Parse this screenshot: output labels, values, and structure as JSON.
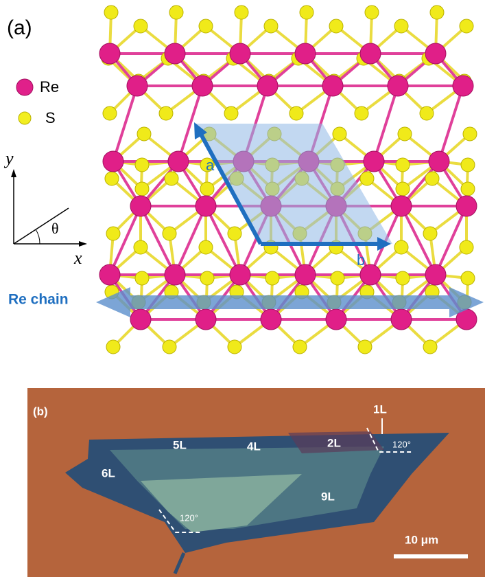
{
  "panel_a": {
    "label": "(a)",
    "legend": [
      "Re",
      "S"
    ],
    "axes": {
      "y": "y",
      "x": "x",
      "angle": "θ"
    },
    "vectors": {
      "a": "a",
      "b": "b"
    },
    "chain": "Re chain"
  },
  "panel_b": {
    "label": "(b)",
    "layers": [
      "1L",
      "2L",
      "4L",
      "5L",
      "6L",
      "9L"
    ],
    "angles": [
      "120°",
      "120°"
    ],
    "scale_bar": "10 μm"
  }
}
